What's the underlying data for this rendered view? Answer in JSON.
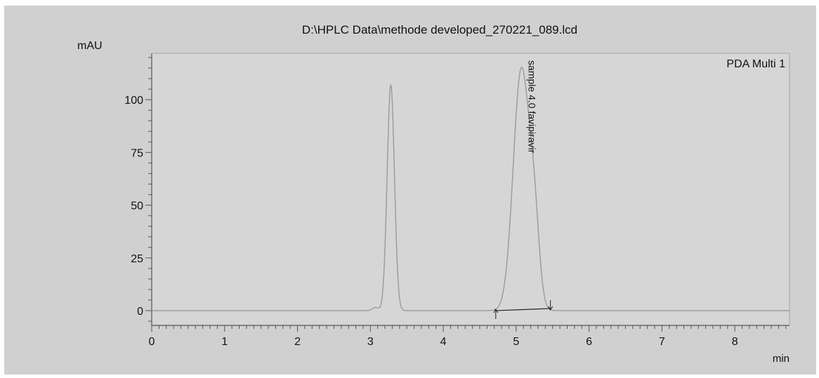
{
  "chart_data": {
    "type": "line",
    "title": "D:\\HPLC Data\\methode developed_270221_089.lcd",
    "ylabel": "mAU",
    "xlabel": "min",
    "xlim": [
      0,
      8.75
    ],
    "ylim": [
      -7,
      122
    ],
    "x_ticks": [
      0,
      1,
      2,
      3,
      4,
      5,
      6,
      7,
      8
    ],
    "y_ticks": [
      0,
      25,
      50,
      75,
      100
    ],
    "grid": false,
    "series": [
      {
        "name": "PDA Multi 1",
        "peaks": [
          {
            "rt": 3.07,
            "height": 1.5,
            "width": 0.04
          },
          {
            "rt": 3.28,
            "height": 107,
            "width": 0.05
          },
          {
            "rt": 5.07,
            "height": 114,
            "width": 0.11
          },
          {
            "rt": 5.25,
            "height": 35,
            "width": 0.07
          }
        ]
      }
    ],
    "annotations": [
      {
        "text": "sample 4.0 favipiravir",
        "x": 5.17,
        "y": 114,
        "rotation": 90
      }
    ],
    "integration_baseline": {
      "x_start": 4.72,
      "x_end": 5.47,
      "y_start": 0.0,
      "y_end": 1.0
    },
    "colors": {
      "frame_bg": "#d0d0d0",
      "plot_bg": "#d6d6d6",
      "trace": "#9a9a9a",
      "axis": "#555555",
      "baseline": "#222222"
    }
  }
}
